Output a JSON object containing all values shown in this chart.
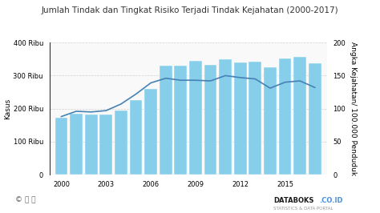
{
  "title": "Jumlah Tindak dan Tingkat Risiko Terjadi Tindak Kejahatan (2000-2017)",
  "years": [
    2000,
    2001,
    2002,
    2003,
    2004,
    2005,
    2006,
    2007,
    2008,
    2009,
    2010,
    2011,
    2012,
    2013,
    2014,
    2015,
    2016,
    2017
  ],
  "bar_values": [
    172000,
    185000,
    183000,
    183000,
    195000,
    225000,
    260000,
    330000,
    330000,
    345000,
    332000,
    350000,
    341000,
    342000,
    325000,
    352000,
    357000,
    337000
  ],
  "line_values": [
    88,
    96,
    95,
    97,
    107,
    122,
    139,
    146,
    143,
    143,
    142,
    150,
    147,
    145,
    131,
    140,
    142,
    132
  ],
  "bar_color": "#87ceeb",
  "line_color": "#4682b4",
  "ylabel_left": "Kasus",
  "ylabel_right": "Angka Kejahatan/ 100.000 Penduduk",
  "ylim_left": [
    0,
    400000
  ],
  "ylim_right": [
    0,
    200
  ],
  "yticks_left": [
    0,
    100000,
    200000,
    300000,
    400000
  ],
  "ytick_labels_left": [
    "0",
    "100 Ribu",
    "200 Ribu",
    "300 Ribu",
    "400 Ribu"
  ],
  "yticks_right": [
    0,
    50,
    100,
    150,
    200
  ],
  "xticks": [
    2000,
    2003,
    2006,
    2009,
    2012,
    2015
  ],
  "bg_color": "#ffffff",
  "plot_bg_color": "#f9f9f9",
  "grid_color": "#d0d0d0",
  "title_fontsize": 7.5,
  "axis_fontsize": 6.5,
  "tick_fontsize": 6.0,
  "footer_left": "© ⓕ ⓣ",
  "footer_right1": "DATABOKS",
  "footer_right2": ".CO.ID",
  "footer_right3": "STATISTICS & DATA PORTAL"
}
